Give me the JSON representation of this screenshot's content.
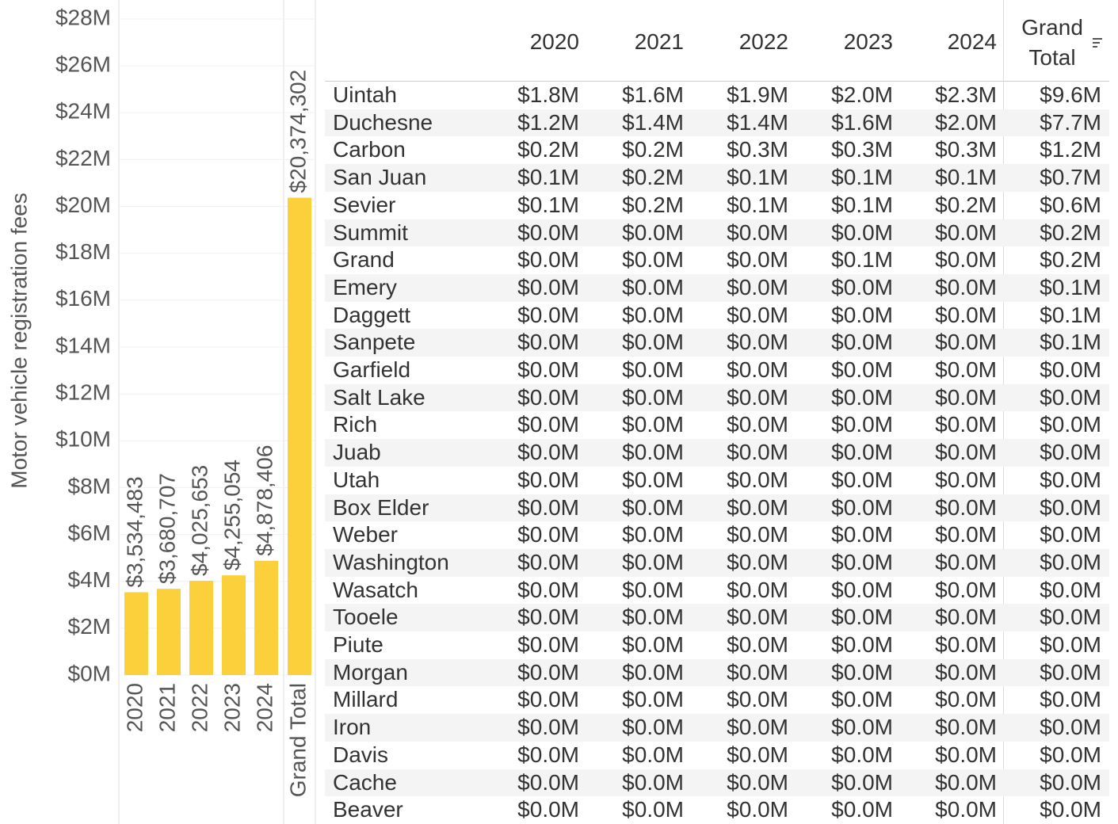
{
  "chart_data": {
    "type": "bar",
    "y_label": "Motor vehicle registration fees",
    "categories": [
      "2020",
      "2021",
      "2022",
      "2023",
      "2024",
      "Grand Total"
    ],
    "values": [
      3534483,
      3680707,
      4025653,
      4255054,
      4878406,
      20374302
    ],
    "value_labels": [
      "$3,534,483",
      "$3,680,707",
      "$4,025,653",
      "$4,255,054",
      "$4,878,406",
      "$20,374,302"
    ],
    "color": "#fcd03a",
    "ylim": [
      0,
      28000000
    ],
    "yticks": [
      {
        "value": 0,
        "label": "$0M"
      },
      {
        "value": 2000000,
        "label": "$2M"
      },
      {
        "value": 4000000,
        "label": "$4M"
      },
      {
        "value": 6000000,
        "label": "$6M"
      },
      {
        "value": 8000000,
        "label": "$8M"
      },
      {
        "value": 10000000,
        "label": "$10M"
      },
      {
        "value": 12000000,
        "label": "$12M"
      },
      {
        "value": 14000000,
        "label": "$14M"
      },
      {
        "value": 16000000,
        "label": "$16M"
      },
      {
        "value": 18000000,
        "label": "$18M"
      },
      {
        "value": 20000000,
        "label": "$20M"
      },
      {
        "value": 22000000,
        "label": "$22M"
      },
      {
        "value": 24000000,
        "label": "$24M"
      },
      {
        "value": 26000000,
        "label": "$26M"
      },
      {
        "value": 28000000,
        "label": "$28M"
      }
    ],
    "grid": true
  },
  "table": {
    "columns": [
      "2020",
      "2021",
      "2022",
      "2023",
      "2024",
      "Grand Total"
    ],
    "rows": [
      [
        "Uintah",
        "$1.8M",
        "$1.6M",
        "$1.9M",
        "$2.0M",
        "$2.3M",
        "$9.6M"
      ],
      [
        "Duchesne",
        "$1.2M",
        "$1.4M",
        "$1.4M",
        "$1.6M",
        "$2.0M",
        "$7.7M"
      ],
      [
        "Carbon",
        "$0.2M",
        "$0.2M",
        "$0.3M",
        "$0.3M",
        "$0.3M",
        "$1.2M"
      ],
      [
        "San Juan",
        "$0.1M",
        "$0.2M",
        "$0.1M",
        "$0.1M",
        "$0.1M",
        "$0.7M"
      ],
      [
        "Sevier",
        "$0.1M",
        "$0.2M",
        "$0.1M",
        "$0.1M",
        "$0.2M",
        "$0.6M"
      ],
      [
        "Summit",
        "$0.0M",
        "$0.0M",
        "$0.0M",
        "$0.0M",
        "$0.0M",
        "$0.2M"
      ],
      [
        "Grand",
        "$0.0M",
        "$0.0M",
        "$0.0M",
        "$0.1M",
        "$0.0M",
        "$0.2M"
      ],
      [
        "Emery",
        "$0.0M",
        "$0.0M",
        "$0.0M",
        "$0.0M",
        "$0.0M",
        "$0.1M"
      ],
      [
        "Daggett",
        "$0.0M",
        "$0.0M",
        "$0.0M",
        "$0.0M",
        "$0.0M",
        "$0.1M"
      ],
      [
        "Sanpete",
        "$0.0M",
        "$0.0M",
        "$0.0M",
        "$0.0M",
        "$0.0M",
        "$0.1M"
      ],
      [
        "Garfield",
        "$0.0M",
        "$0.0M",
        "$0.0M",
        "$0.0M",
        "$0.0M",
        "$0.0M"
      ],
      [
        "Salt Lake",
        "$0.0M",
        "$0.0M",
        "$0.0M",
        "$0.0M",
        "$0.0M",
        "$0.0M"
      ],
      [
        "Rich",
        "$0.0M",
        "$0.0M",
        "$0.0M",
        "$0.0M",
        "$0.0M",
        "$0.0M"
      ],
      [
        "Juab",
        "$0.0M",
        "$0.0M",
        "$0.0M",
        "$0.0M",
        "$0.0M",
        "$0.0M"
      ],
      [
        "Utah",
        "$0.0M",
        "$0.0M",
        "$0.0M",
        "$0.0M",
        "$0.0M",
        "$0.0M"
      ],
      [
        "Box Elder",
        "$0.0M",
        "$0.0M",
        "$0.0M",
        "$0.0M",
        "$0.0M",
        "$0.0M"
      ],
      [
        "Weber",
        "$0.0M",
        "$0.0M",
        "$0.0M",
        "$0.0M",
        "$0.0M",
        "$0.0M"
      ],
      [
        "Washington",
        "$0.0M",
        "$0.0M",
        "$0.0M",
        "$0.0M",
        "$0.0M",
        "$0.0M"
      ],
      [
        "Wasatch",
        "$0.0M",
        "$0.0M",
        "$0.0M",
        "$0.0M",
        "$0.0M",
        "$0.0M"
      ],
      [
        "Tooele",
        "$0.0M",
        "$0.0M",
        "$0.0M",
        "$0.0M",
        "$0.0M",
        "$0.0M"
      ],
      [
        "Piute",
        "$0.0M",
        "$0.0M",
        "$0.0M",
        "$0.0M",
        "$0.0M",
        "$0.0M"
      ],
      [
        "Morgan",
        "$0.0M",
        "$0.0M",
        "$0.0M",
        "$0.0M",
        "$0.0M",
        "$0.0M"
      ],
      [
        "Millard",
        "$0.0M",
        "$0.0M",
        "$0.0M",
        "$0.0M",
        "$0.0M",
        "$0.0M"
      ],
      [
        "Iron",
        "$0.0M",
        "$0.0M",
        "$0.0M",
        "$0.0M",
        "$0.0M",
        "$0.0M"
      ],
      [
        "Davis",
        "$0.0M",
        "$0.0M",
        "$0.0M",
        "$0.0M",
        "$0.0M",
        "$0.0M"
      ],
      [
        "Cache",
        "$0.0M",
        "$0.0M",
        "$0.0M",
        "$0.0M",
        "$0.0M",
        "$0.0M"
      ],
      [
        "Beaver",
        "$0.0M",
        "$0.0M",
        "$0.0M",
        "$0.0M",
        "$0.0M",
        "$0.0M"
      ]
    ]
  }
}
